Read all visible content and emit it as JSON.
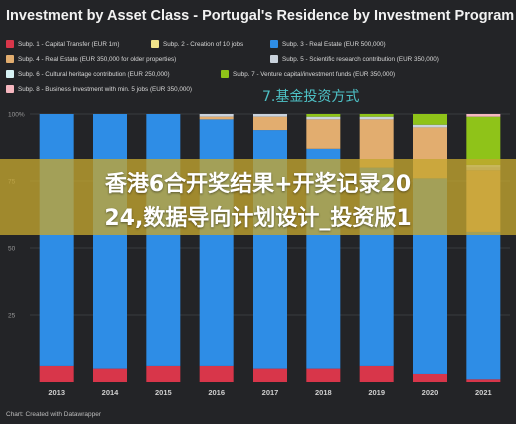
{
  "title": "Investment by Asset Class - Portugal's Residence by Investment Program",
  "legend": [
    {
      "label": "Subp. 1 - Capital Transfer (EUR 1m)",
      "color": "#d8364a"
    },
    {
      "label": "Subp. 2 - Creation of 10 jobs",
      "color": "#f1e38a"
    },
    {
      "label": "Subp. 3 - Real Estate (EUR 500,000)",
      "color": "#2e8de6"
    },
    {
      "label": "Subp. 4 - Real Estate (EUR 350,000 for older properties)",
      "color": "#e2ad6f"
    },
    {
      "label": "Subp. 5 - Scientific research contribution (EUR 350,000)",
      "color": "#c9d2dc"
    },
    {
      "label": "Subp. 6 - Cultural heritage contribution (EUR 250,000)",
      "color": "#d7f3f5"
    },
    {
      "label": "Subp. 7 - Venture capital/investment funds (EUR 350,000)",
      "color": "#8fc319"
    },
    {
      "label": "Subp. 8 - Business investment with min. 5 jobs (EUR 350,000)",
      "color": "#f6b7c0"
    }
  ],
  "handwritten_note": "7.基金投资方式",
  "overlay": {
    "line1": "香港6合开奖结果+开奖记录20",
    "line2": "24,数据导向计划设计_投资版1"
  },
  "credit": "Chart: Created with Datawrapper",
  "chart_data": {
    "type": "bar",
    "stacked": true,
    "percent": true,
    "title": "Investment by Asset Class - Portugal's Residence by Investment Program",
    "categories": [
      "2013",
      "2014",
      "2015",
      "2016",
      "2017",
      "2018",
      "2019",
      "2020",
      "2021"
    ],
    "y_ticks": [
      "100%",
      "75",
      "50",
      "25"
    ],
    "ylim": [
      0,
      100
    ],
    "grid": true,
    "legend_position": "top",
    "series": [
      {
        "name": "Subp. 1 - Capital Transfer (EUR 1m)",
        "color": "#d8364a",
        "values": [
          6,
          5,
          6,
          6,
          5,
          5,
          6,
          3,
          1
        ]
      },
      {
        "name": "Subp. 2 - Creation of 10 jobs",
        "color": "#f1e38a",
        "values": [
          0,
          0,
          0,
          0,
          0,
          0,
          0,
          0,
          0
        ]
      },
      {
        "name": "Subp. 3 - Real Estate (EUR 500,000)",
        "color": "#2e8de6",
        "values": [
          94,
          95,
          94,
          92,
          89,
          82,
          74,
          73,
          55
        ]
      },
      {
        "name": "Subp. 4 - Real Estate (EUR 350,000 for older properties)",
        "color": "#e2ad6f",
        "values": [
          0,
          0,
          0,
          1,
          5,
          11,
          18,
          19,
          23
        ]
      },
      {
        "name": "Subp. 5 - Scientific research contribution (EUR 350,000)",
        "color": "#c9d2dc",
        "values": [
          0,
          0,
          0,
          1,
          1,
          1,
          1,
          1,
          1
        ]
      },
      {
        "name": "Subp. 6 - Cultural heritage contribution (EUR 250,000)",
        "color": "#d7f3f5",
        "values": [
          0,
          0,
          0,
          0,
          0,
          0,
          0,
          0,
          1
        ]
      },
      {
        "name": "Subp. 7 - Venture capital/investment funds (EUR 350,000)",
        "color": "#8fc319",
        "values": [
          0,
          0,
          0,
          0,
          0,
          1,
          1,
          4,
          18
        ]
      },
      {
        "name": "Subp. 8 - Business investment with min. 5 jobs (EUR 350,000)",
        "color": "#f6b7c0",
        "values": [
          0,
          0,
          0,
          0,
          0,
          0,
          0,
          0,
          1
        ]
      }
    ]
  }
}
